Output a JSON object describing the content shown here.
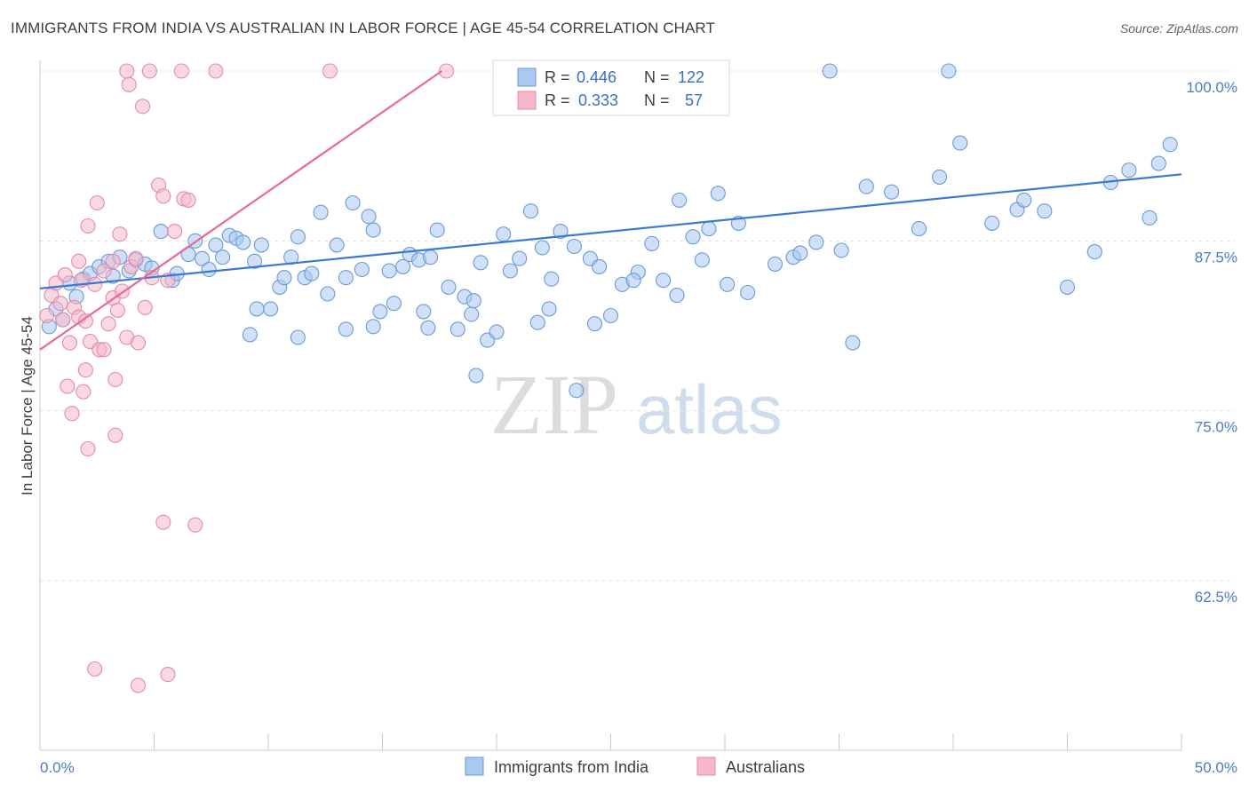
{
  "title": "IMMIGRANTS FROM INDIA VS AUSTRALIAN IN LABOR FORCE | AGE 45-54 CORRELATION CHART",
  "source": "Source: ZipAtlas.com",
  "watermark": {
    "part1": "ZIP",
    "part2": "atlas"
  },
  "colors": {
    "blue": "#3a78d4",
    "blue_fill": "#aac8f0",
    "pink": "#e86a92",
    "pink_fill": "#f5b8cb",
    "grid": "#e3e3e3",
    "tick_text": "#4a7cc7"
  },
  "legend": {
    "r_label": "R =",
    "n_label": "N =",
    "entries": [
      {
        "name": "Immigrants from India",
        "r": "0.446",
        "n": "122",
        "color": "blue"
      },
      {
        "name": "Australians",
        "r": "0.333",
        "n": "57",
        "color": "pink"
      }
    ]
  },
  "chart_data": {
    "type": "scatter",
    "title": "IMMIGRANTS FROM INDIA VS AUSTRALIAN IN LABOR FORCE | AGE 45-54 CORRELATION CHART",
    "xlabel": "",
    "ylabel": "In Labor Force | Age 45-54",
    "xlim": [
      0,
      50
    ],
    "ylim": [
      50,
      101
    ],
    "x_tick_labels": [
      "0.0%",
      "50.0%"
    ],
    "y_ticks": [
      62.5,
      75.0,
      87.5,
      100.0
    ],
    "y_tick_labels": [
      "62.5%",
      "75.0%",
      "87.5%",
      "100.0%"
    ],
    "grid": true,
    "legend_position": "top-center",
    "series": [
      {
        "name": "Immigrants from India",
        "color": "#3a78d4",
        "trend": {
          "x": [
            0,
            50
          ],
          "y": [
            84.0,
            92.4
          ]
        },
        "points": [
          [
            0.4,
            81.2
          ],
          [
            0.7,
            82.5
          ],
          [
            1.0,
            81.7
          ],
          [
            1.3,
            84.4
          ],
          [
            1.6,
            83.4
          ],
          [
            1.9,
            84.7
          ],
          [
            2.2,
            85.1
          ],
          [
            2.6,
            85.6
          ],
          [
            3.0,
            86.0
          ],
          [
            3.2,
            84.9
          ],
          [
            3.5,
            86.3
          ],
          [
            3.9,
            85.3
          ],
          [
            4.2,
            86.1
          ],
          [
            4.6,
            85.8
          ],
          [
            4.9,
            85.5
          ],
          [
            5.3,
            88.2
          ],
          [
            5.8,
            84.6
          ],
          [
            6.0,
            85.1
          ],
          [
            6.5,
            86.5
          ],
          [
            6.8,
            87.5
          ],
          [
            7.1,
            86.2
          ],
          [
            7.4,
            85.4
          ],
          [
            7.7,
            87.2
          ],
          [
            8.0,
            86.3
          ],
          [
            8.3,
            87.9
          ],
          [
            8.6,
            87.7
          ],
          [
            8.9,
            87.4
          ],
          [
            9.4,
            86.0
          ],
          [
            9.7,
            87.2
          ],
          [
            10.1,
            82.5
          ],
          [
            10.5,
            84.1
          ],
          [
            10.7,
            84.8
          ],
          [
            11.0,
            86.3
          ],
          [
            11.3,
            87.8
          ],
          [
            11.6,
            84.8
          ],
          [
            11.9,
            85.1
          ],
          [
            12.3,
            89.6
          ],
          [
            12.6,
            83.6
          ],
          [
            13.0,
            87.2
          ],
          [
            13.4,
            84.8
          ],
          [
            13.7,
            90.3
          ],
          [
            14.1,
            85.4
          ],
          [
            14.4,
            89.3
          ],
          [
            14.6,
            88.3
          ],
          [
            14.9,
            82.3
          ],
          [
            15.3,
            85.3
          ],
          [
            15.5,
            82.9
          ],
          [
            15.9,
            85.6
          ],
          [
            16.2,
            86.5
          ],
          [
            16.6,
            86.1
          ],
          [
            17.1,
            86.3
          ],
          [
            17.4,
            88.3
          ],
          [
            17.9,
            84.1
          ],
          [
            18.3,
            81.0
          ],
          [
            18.6,
            83.4
          ],
          [
            19.0,
            83.1
          ],
          [
            19.3,
            85.9
          ],
          [
            19.6,
            80.2
          ],
          [
            20.0,
            80.8
          ],
          [
            20.3,
            88.0
          ],
          [
            20.6,
            85.3
          ],
          [
            21.0,
            86.2
          ],
          [
            21.5,
            89.7
          ],
          [
            22.0,
            87.0
          ],
          [
            22.4,
            84.7
          ],
          [
            22.8,
            88.2
          ],
          [
            23.4,
            87.1
          ],
          [
            24.1,
            86.2
          ],
          [
            24.5,
            85.6
          ],
          [
            25.0,
            82.0
          ],
          [
            25.5,
            84.3
          ],
          [
            26.2,
            85.2
          ],
          [
            26.8,
            87.3
          ],
          [
            27.3,
            84.6
          ],
          [
            28.0,
            90.5
          ],
          [
            28.6,
            87.8
          ],
          [
            29.0,
            86.1
          ],
          [
            29.3,
            88.4
          ],
          [
            29.7,
            91.0
          ],
          [
            30.1,
            84.3
          ],
          [
            30.6,
            88.8
          ],
          [
            31.0,
            83.7
          ],
          [
            32.2,
            85.8
          ],
          [
            33.0,
            86.3
          ],
          [
            33.3,
            86.6
          ],
          [
            34.0,
            87.4
          ],
          [
            35.1,
            86.8
          ],
          [
            35.6,
            80.0
          ],
          [
            36.2,
            91.5
          ],
          [
            37.3,
            91.1
          ],
          [
            38.5,
            88.4
          ],
          [
            39.4,
            92.2
          ],
          [
            40.3,
            94.7
          ],
          [
            41.7,
            88.8
          ],
          [
            42.8,
            89.8
          ],
          [
            43.1,
            90.5
          ],
          [
            44.0,
            89.7
          ],
          [
            45.0,
            84.1
          ],
          [
            46.2,
            86.7
          ],
          [
            46.9,
            91.8
          ],
          [
            47.7,
            92.7
          ],
          [
            48.6,
            89.2
          ],
          [
            49.0,
            93.2
          ],
          [
            49.5,
            94.6
          ],
          [
            39.8,
            100.0
          ],
          [
            34.6,
            100.0
          ],
          [
            20.3,
            100.0
          ],
          [
            23.5,
            76.5
          ],
          [
            17.0,
            81.1
          ],
          [
            19.1,
            77.6
          ],
          [
            13.4,
            81.0
          ],
          [
            14.6,
            81.2
          ],
          [
            16.8,
            82.3
          ],
          [
            18.9,
            82.1
          ],
          [
            21.8,
            81.5
          ],
          [
            22.3,
            82.5
          ],
          [
            24.3,
            81.4
          ],
          [
            11.3,
            80.4
          ],
          [
            9.5,
            82.5
          ],
          [
            9.2,
            80.6
          ],
          [
            26.0,
            84.6
          ],
          [
            27.9,
            83.5
          ]
        ]
      },
      {
        "name": "Australians",
        "color": "#e86a92",
        "trend": {
          "x": [
            0,
            17.6
          ],
          "y": [
            79.5,
            100.0
          ]
        },
        "points": [
          [
            0.3,
            82.0
          ],
          [
            0.5,
            83.5
          ],
          [
            0.7,
            84.4
          ],
          [
            0.9,
            82.9
          ],
          [
            1.0,
            81.7
          ],
          [
            1.1,
            85.0
          ],
          [
            1.3,
            80.0
          ],
          [
            1.5,
            82.6
          ],
          [
            1.7,
            81.9
          ],
          [
            1.8,
            84.6
          ],
          [
            2.0,
            81.6
          ],
          [
            2.2,
            80.1
          ],
          [
            2.4,
            84.3
          ],
          [
            2.6,
            79.5
          ],
          [
            2.8,
            85.3
          ],
          [
            3.0,
            81.4
          ],
          [
            3.2,
            83.3
          ],
          [
            3.4,
            82.4
          ],
          [
            3.6,
            83.8
          ],
          [
            3.8,
            80.4
          ],
          [
            4.0,
            85.6
          ],
          [
            4.2,
            86.2
          ],
          [
            4.6,
            82.6
          ],
          [
            4.9,
            84.8
          ],
          [
            5.2,
            91.6
          ],
          [
            5.4,
            90.8
          ],
          [
            5.6,
            84.6
          ],
          [
            5.9,
            88.2
          ],
          [
            6.3,
            90.6
          ],
          [
            6.5,
            90.5
          ],
          [
            1.7,
            86.0
          ],
          [
            2.1,
            88.6
          ],
          [
            2.5,
            90.3
          ],
          [
            3.2,
            86.0
          ],
          [
            3.5,
            88.0
          ],
          [
            1.2,
            76.8
          ],
          [
            2.0,
            78.0
          ],
          [
            2.8,
            79.5
          ],
          [
            3.3,
            77.3
          ],
          [
            4.3,
            80.0
          ],
          [
            1.4,
            74.8
          ],
          [
            1.9,
            76.4
          ],
          [
            2.1,
            72.2
          ],
          [
            3.3,
            73.2
          ],
          [
            5.4,
            66.8
          ],
          [
            6.8,
            66.6
          ],
          [
            2.4,
            56.0
          ],
          [
            4.3,
            54.8
          ],
          [
            5.6,
            55.6
          ],
          [
            3.9,
            99.0
          ],
          [
            4.8,
            100.0
          ],
          [
            3.8,
            100.0
          ],
          [
            6.2,
            100.0
          ],
          [
            7.7,
            100.0
          ],
          [
            12.7,
            100.0
          ],
          [
            17.8,
            100.0
          ],
          [
            4.5,
            97.4
          ]
        ]
      }
    ]
  }
}
